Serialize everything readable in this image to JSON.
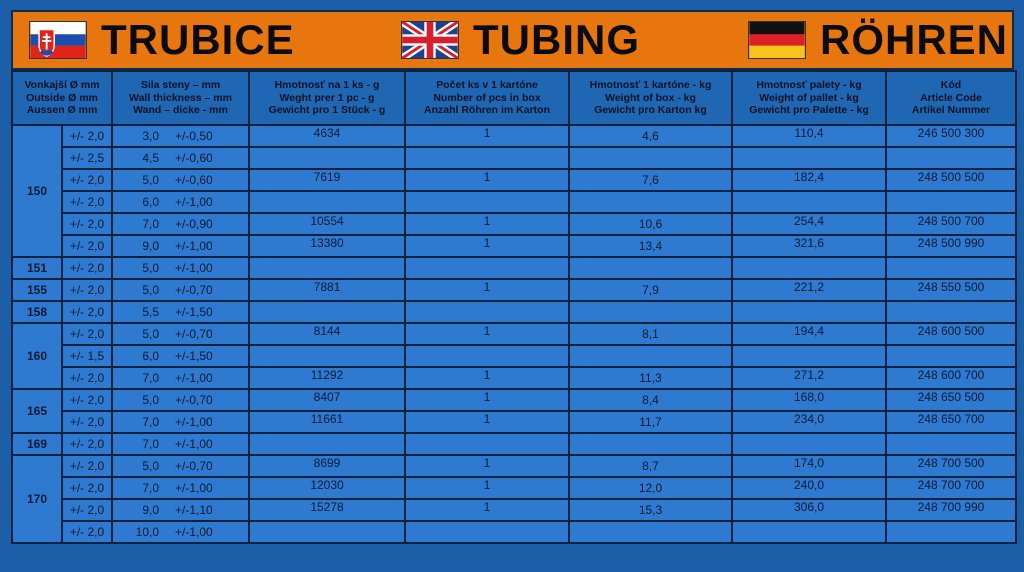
{
  "header": {
    "sk_title": "TRUBICE",
    "en_title": "TUBING",
    "de_title": "RÖHREN",
    "sk_flag_icon": "slovakia-flag-icon",
    "en_flag_icon": "uk-flag-icon",
    "de_flag_icon": "germany-flag-icon"
  },
  "colors": {
    "header_bg": "#e8760f",
    "table_bg": "#2f7ad1",
    "border": "#0a2240"
  },
  "columns": [
    [
      "Vonkajší Ø mm",
      "Outside Ø mm",
      "Aussen Ø mm"
    ],
    [
      "Sila steny – mm",
      "Wall thickness – mm",
      "Wand – dicke - mm"
    ],
    [
      "Hmotnosť na 1 ks - g",
      "Weght prer 1 pc - g",
      "Gewicht pro 1 Stück - g"
    ],
    [
      "Počet ks v 1 kartóne",
      "Number of pcs in box",
      "Anzahl Röhren im Karton"
    ],
    [
      "Hmotnosť  1 kartóne - kg",
      "Weight of box - kg",
      "Gewicht pro Karton kg"
    ],
    [
      "Hmotnosť palety - kg",
      "Weight of pallet - kg",
      "Gewicht pro Palette - kg"
    ],
    [
      "Kód",
      "Article Code",
      "Artikel Nummer"
    ]
  ],
  "groups": [
    {
      "diameter": "150",
      "rows": [
        {
          "tol": "+/- 2,0",
          "wall": "3,0",
          "wall_tol": "+/-0,50",
          "weight_g": "4634",
          "pcs": "1",
          "box_kg": "4,6",
          "pallet_kg": "110,4",
          "code": "246 500 300"
        },
        {
          "tol": "+/- 2,5",
          "wall": "4,5",
          "wall_tol": "+/-0,60",
          "weight_g": "",
          "pcs": "",
          "box_kg": "",
          "pallet_kg": "",
          "code": ""
        },
        {
          "tol": "+/- 2,0",
          "wall": "5,0",
          "wall_tol": "+/-0,60",
          "weight_g": "7619",
          "pcs": "1",
          "box_kg": "7,6",
          "pallet_kg": "182,4",
          "code": "248 500 500"
        },
        {
          "tol": "+/- 2,0",
          "wall": "6,0",
          "wall_tol": "+/-1,00",
          "weight_g": "",
          "pcs": "",
          "box_kg": "",
          "pallet_kg": "",
          "code": ""
        },
        {
          "tol": "+/- 2,0",
          "wall": "7,0",
          "wall_tol": "+/-0,90",
          "weight_g": "10554",
          "pcs": "1",
          "box_kg": "10,6",
          "pallet_kg": "254,4",
          "code": "248 500 700"
        },
        {
          "tol": "+/- 2,0",
          "wall": "9,0",
          "wall_tol": "+/-1,00",
          "weight_g": "13380",
          "pcs": "1",
          "box_kg": "13,4",
          "pallet_kg": "321,6",
          "code": "248 500 990"
        }
      ]
    },
    {
      "diameter": "151",
      "rows": [
        {
          "tol": "+/- 2,0",
          "wall": "5,0",
          "wall_tol": "+/-1,00",
          "weight_g": "",
          "pcs": "",
          "box_kg": "",
          "pallet_kg": "",
          "code": ""
        }
      ]
    },
    {
      "diameter": "155",
      "rows": [
        {
          "tol": "+/- 2,0",
          "wall": "5,0",
          "wall_tol": "+/-0,70",
          "weight_g": "7881",
          "pcs": "1",
          "box_kg": "7,9",
          "pallet_kg": "221,2",
          "code": "248 550 500"
        }
      ]
    },
    {
      "diameter": "158",
      "rows": [
        {
          "tol": "+/- 2,0",
          "wall": "5,5",
          "wall_tol": "+/-1,50",
          "weight_g": "",
          "pcs": "",
          "box_kg": "",
          "pallet_kg": "",
          "code": ""
        }
      ]
    },
    {
      "diameter": "160",
      "rows": [
        {
          "tol": "+/- 2,0",
          "wall": "5,0",
          "wall_tol": "+/-0,70",
          "weight_g": "8144",
          "pcs": "1",
          "box_kg": "8,1",
          "pallet_kg": "194,4",
          "code": "248 600 500"
        },
        {
          "tol": "+/- 1,5",
          "wall": "6,0",
          "wall_tol": "+/-1,50",
          "weight_g": "",
          "pcs": "",
          "box_kg": "",
          "pallet_kg": "",
          "code": ""
        },
        {
          "tol": "+/- 2,0",
          "wall": "7,0",
          "wall_tol": "+/-1,00",
          "weight_g": "11292",
          "pcs": "1",
          "box_kg": "11,3",
          "pallet_kg": "271,2",
          "code": "248 600 700"
        }
      ]
    },
    {
      "diameter": "165",
      "rows": [
        {
          "tol": "+/- 2,0",
          "wall": "5,0",
          "wall_tol": "+/-0,70",
          "weight_g": "8407",
          "pcs": "1",
          "box_kg": "8,4",
          "pallet_kg": "168,0",
          "code": "248 650 500"
        },
        {
          "tol": "+/- 2,0",
          "wall": "7,0",
          "wall_tol": "+/-1,00",
          "weight_g": "11661",
          "pcs": "1",
          "box_kg": "11,7",
          "pallet_kg": "234,0",
          "code": "248 650 700"
        }
      ]
    },
    {
      "diameter": "169",
      "rows": [
        {
          "tol": "+/- 2,0",
          "wall": "7,0",
          "wall_tol": "+/-1,00",
          "weight_g": "",
          "pcs": "",
          "box_kg": "",
          "pallet_kg": "",
          "code": ""
        }
      ]
    },
    {
      "diameter": "170",
      "rows": [
        {
          "tol": "+/- 2,0",
          "wall": "5,0",
          "wall_tol": "+/-0,70",
          "weight_g": "8699",
          "pcs": "1",
          "box_kg": "8,7",
          "pallet_kg": "174,0",
          "code": "248 700 500"
        },
        {
          "tol": "+/- 2,0",
          "wall": "7,0",
          "wall_tol": "+/-1,00",
          "weight_g": "12030",
          "pcs": "1",
          "box_kg": "12,0",
          "pallet_kg": "240,0",
          "code": "248 700 700"
        },
        {
          "tol": "+/- 2,0",
          "wall": "9,0",
          "wall_tol": "+/-1,10",
          "weight_g": "15278",
          "pcs": "1",
          "box_kg": "15,3",
          "pallet_kg": "306,0",
          "code": "248 700 990"
        },
        {
          "tol": "+/- 2,0",
          "wall": "10,0",
          "wall_tol": "+/-1,00",
          "weight_g": "",
          "pcs": "",
          "box_kg": "",
          "pallet_kg": "",
          "code": ""
        }
      ]
    }
  ]
}
